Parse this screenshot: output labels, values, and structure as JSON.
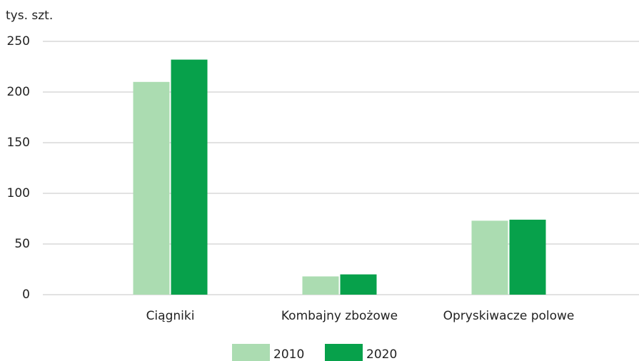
{
  "chart_data": {
    "type": "bar",
    "y_unit": "tys. szt.",
    "categories": [
      "Ciągniki",
      "Kombajny zbożowe",
      "Opryskiwacze polowe"
    ],
    "series": [
      {
        "name": "2010",
        "color": "#abdcb1",
        "values": [
          210,
          18,
          73
        ]
      },
      {
        "name": "2020",
        "color": "#07a14b",
        "values": [
          232,
          20,
          74
        ]
      }
    ],
    "ylim": [
      0,
      250
    ],
    "yticks": [
      0,
      50,
      100,
      150,
      200,
      250
    ],
    "grid": true,
    "legend": "bottom"
  }
}
